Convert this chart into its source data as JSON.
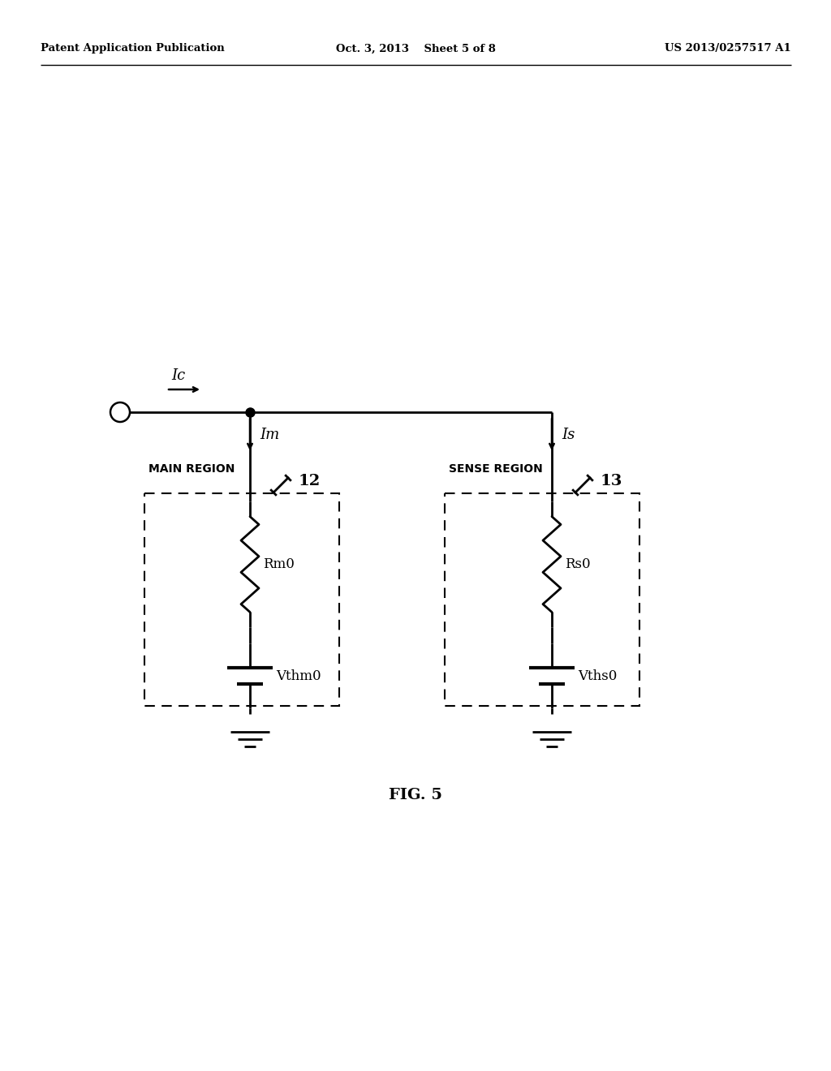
{
  "bg_color": "#ffffff",
  "line_color": "#000000",
  "header_left": "Patent Application Publication",
  "header_center": "Oct. 3, 2013    Sheet 5 of 8",
  "header_right": "US 2013/0257517 A1",
  "fig_label": "FIG. 5",
  "main_region_label": "MAIN REGION",
  "sense_region_label": "SENSE REGION",
  "ic_label": "Ic",
  "im_label": "Im",
  "is_label": "Is",
  "rm0_label": "Rm0",
  "rs0_label": "Rs0",
  "vthm0_label": "Vthm0",
  "vths0_label": "Vths0",
  "label_12": "12",
  "label_13": "13"
}
